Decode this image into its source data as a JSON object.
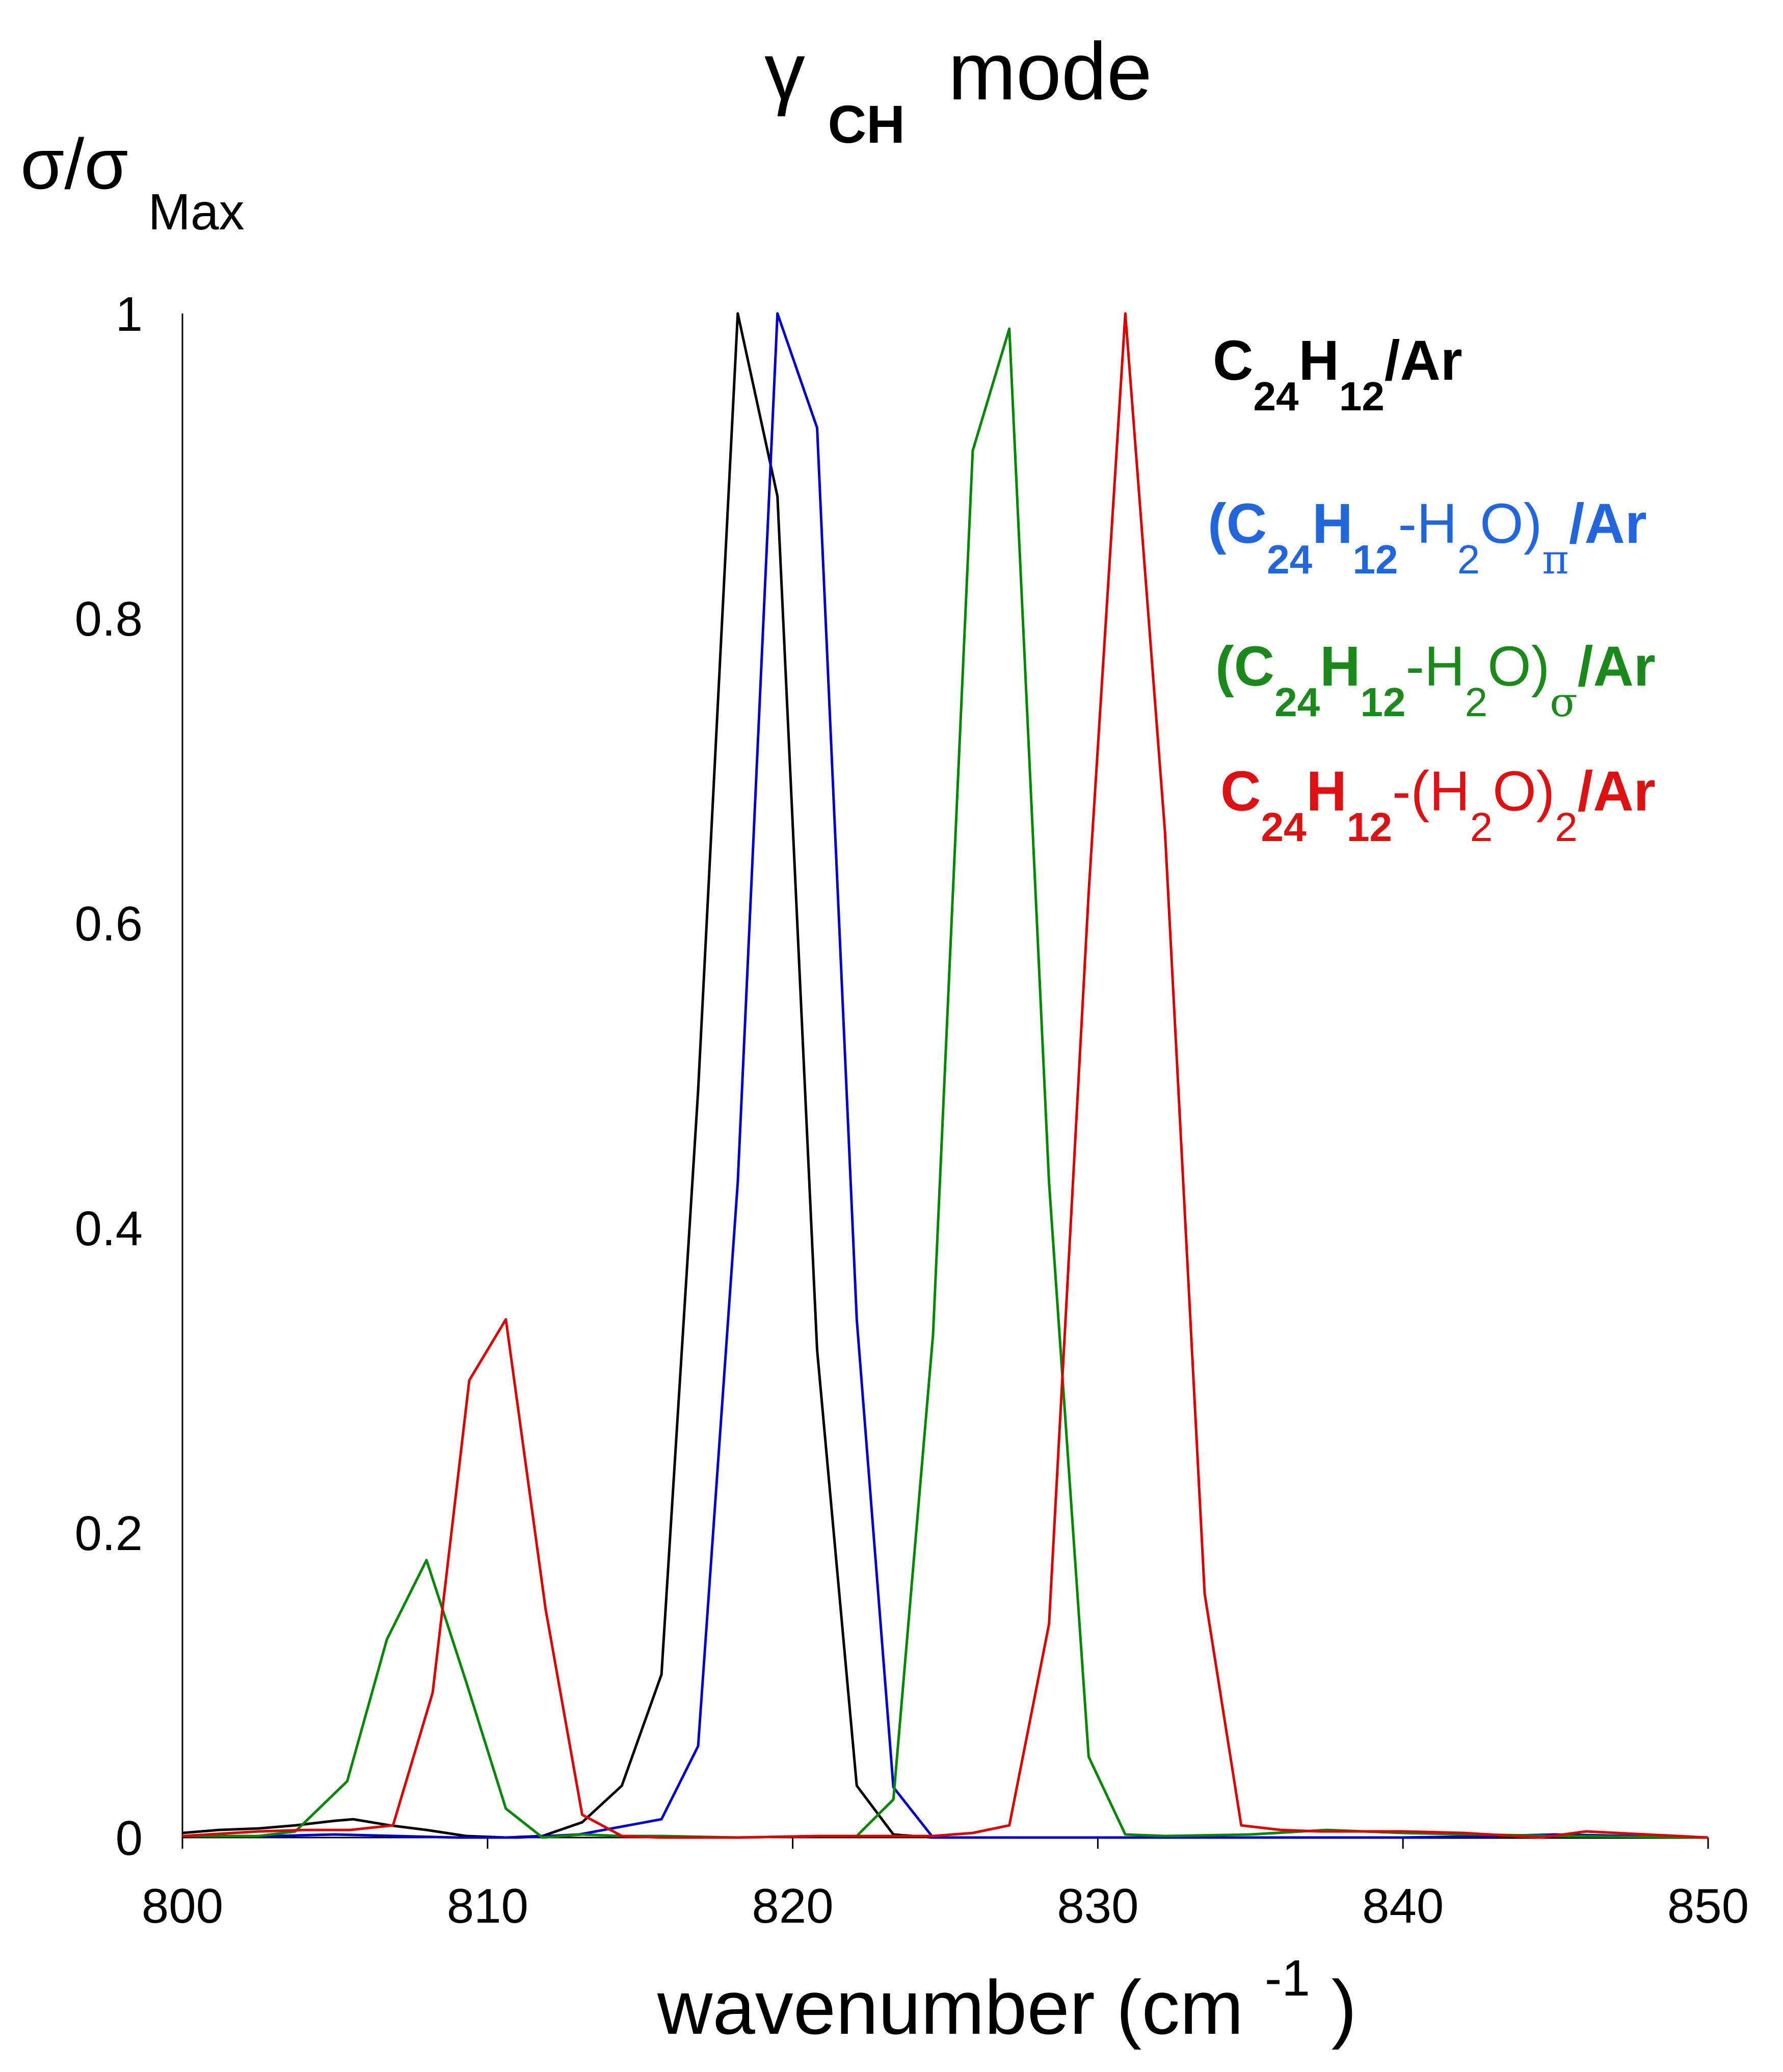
{
  "chart_data": {
    "type": "line",
    "title": {
      "symbol": "γ",
      "subscript": "CH",
      "text": "mode"
    },
    "ylabel": {
      "main": "σ/σ",
      "subscript": "Max"
    },
    "xlabel": {
      "main": "wavenumber (cm",
      "superscript": "-1",
      "closing": ")"
    },
    "xlim": [
      800,
      850
    ],
    "ylim": [
      0,
      1
    ],
    "x_ticks": [
      800,
      810,
      820,
      830,
      840,
      850
    ],
    "x_tick_labels": [
      "800",
      "810",
      "820",
      "830",
      "840",
      "850"
    ],
    "y_ticks": [
      0,
      0.2,
      0.4,
      0.6,
      0.8,
      1
    ],
    "y_tick_labels": [
      "0",
      "0.2",
      "0.4",
      "0.6",
      "0.8",
      "1"
    ],
    "grid": false,
    "legend_position": "top-right",
    "series": [
      {
        "color": "#000000",
        "legend": [
          {
            "t": "C",
            "b": true,
            "pos": "n"
          },
          {
            "t": "24",
            "b": true,
            "pos": "sub"
          },
          {
            "t": "H",
            "b": true,
            "pos": "n"
          },
          {
            "t": "12",
            "b": true,
            "pos": "sub"
          },
          {
            "t": "/Ar",
            "b": true,
            "pos": "n"
          }
        ],
        "x": [
          800,
          801.2,
          802.5,
          803.7,
          805,
          805.6,
          806.8,
          808,
          809.3,
          810.6,
          811.8,
          813.1,
          814.4,
          815.7,
          816.9,
          818.2,
          819.5,
          820.8,
          822.1,
          823.3,
          824.6,
          826,
          828,
          830,
          835,
          840,
          845,
          850
        ],
        "y": [
          0.003,
          0.005,
          0.006,
          0.008,
          0.011,
          0.012,
          0.008,
          0.005,
          0.001,
          0.0,
          0.001,
          0.01,
          0.034,
          0.107,
          0.49,
          1.0,
          0.88,
          0.32,
          0.034,
          0.002,
          0.0,
          0.0,
          0.0,
          0.0,
          0.0,
          0.0,
          0.0,
          0.0
        ]
      },
      {
        "color": "#0000cc",
        "legend_color": "#2266dd",
        "legend": [
          {
            "t": "(",
            "b": true,
            "pos": "n"
          },
          {
            "t": "C",
            "b": true,
            "pos": "n"
          },
          {
            "t": "24",
            "b": true,
            "pos": "sub"
          },
          {
            "t": "H",
            "b": true,
            "pos": "n"
          },
          {
            "t": "12",
            "b": true,
            "pos": "sub"
          },
          {
            "t": "-H",
            "b": false,
            "pos": "n"
          },
          {
            "t": "2",
            "b": false,
            "pos": "sub"
          },
          {
            "t": "O)",
            "b": false,
            "pos": "n"
          },
          {
            "t": "π",
            "b": false,
            "pos": "sub",
            "serif": true
          },
          {
            "t": "/Ar",
            "b": true,
            "pos": "n"
          }
        ],
        "x": [
          800,
          803,
          805,
          807,
          809,
          811,
          813,
          815.7,
          816.9,
          818.2,
          819.5,
          820.8,
          822.1,
          823.3,
          824.6,
          826,
          830,
          835,
          840,
          843,
          845,
          850
        ],
        "y": [
          0.001,
          0.001,
          0.002,
          0.001,
          0.0,
          0.0,
          0.002,
          0.012,
          0.06,
          0.43,
          1.0,
          0.925,
          0.34,
          0.033,
          0.0,
          0.0,
          0.0,
          0.0,
          0.0,
          0.001,
          0.002,
          0.0
        ]
      },
      {
        "color": "#008800",
        "legend_color": "#1a8a1a",
        "legend": [
          {
            "t": "(",
            "b": true,
            "pos": "n"
          },
          {
            "t": "C",
            "b": true,
            "pos": "n"
          },
          {
            "t": "24",
            "b": true,
            "pos": "sub"
          },
          {
            "t": "H",
            "b": true,
            "pos": "n"
          },
          {
            "t": "12",
            "b": true,
            "pos": "sub"
          },
          {
            "t": "-H",
            "b": false,
            "pos": "n"
          },
          {
            "t": "2",
            "b": false,
            "pos": "sub"
          },
          {
            "t": "O)",
            "b": false,
            "pos": "n"
          },
          {
            "t": "σ",
            "b": false,
            "pos": "sub",
            "serif": true
          },
          {
            "t": "/Ar",
            "b": true,
            "pos": "n"
          }
        ],
        "x": [
          800,
          802.5,
          803.7,
          805.4,
          806.7,
          808,
          809.3,
          810.6,
          811.8,
          813.1,
          814.4,
          815.7,
          818.2,
          821,
          822.1,
          823.3,
          824.6,
          825.9,
          827.1,
          828.4,
          829.7,
          830.9,
          832.2,
          835,
          837.5,
          840,
          845,
          850
        ],
        "y": [
          0.001,
          0.001,
          0.004,
          0.037,
          0.13,
          0.182,
          0.102,
          0.019,
          0.0,
          0.002,
          0.001,
          0.001,
          0.0,
          0.001,
          0.001,
          0.025,
          0.33,
          0.91,
          0.99,
          0.43,
          0.053,
          0.002,
          0.001,
          0.002,
          0.005,
          0.003,
          0.001,
          0.0
        ]
      },
      {
        "color": "#dd0000",
        "legend_color": "#dd1111",
        "legend": [
          {
            "t": "C",
            "b": true,
            "pos": "n"
          },
          {
            "t": "24",
            "b": true,
            "pos": "sub"
          },
          {
            "t": "H",
            "b": true,
            "pos": "n"
          },
          {
            "t": "12",
            "b": true,
            "pos": "sub"
          },
          {
            "t": "-(H",
            "b": false,
            "pos": "n"
          },
          {
            "t": "2",
            "b": false,
            "pos": "sub"
          },
          {
            "t": "O)",
            "b": false,
            "pos": "n"
          },
          {
            "t": "2",
            "b": false,
            "pos": "sub"
          },
          {
            "t": "/Ar",
            "b": true,
            "pos": "n"
          }
        ],
        "x": [
          800,
          802.5,
          804,
          805.5,
          806.9,
          808.2,
          809.4,
          810.6,
          811.9,
          813.1,
          814.4,
          815.7,
          818.2,
          820.8,
          822.1,
          823.3,
          824.6,
          825.9,
          827.1,
          828.4,
          829.7,
          830.9,
          832.2,
          833.5,
          834.7,
          836,
          837.3,
          840,
          842,
          844.5,
          846,
          848,
          850
        ],
        "y": [
          0.001,
          0.004,
          0.005,
          0.005,
          0.008,
          0.095,
          0.3,
          0.34,
          0.15,
          0.015,
          0.001,
          0.0,
          0.0,
          0.001,
          0.001,
          0.001,
          0.001,
          0.003,
          0.008,
          0.14,
          0.62,
          1.0,
          0.66,
          0.16,
          0.008,
          0.005,
          0.004,
          0.004,
          0.003,
          0.0,
          0.004,
          0.002,
          0.0
        ]
      }
    ]
  }
}
